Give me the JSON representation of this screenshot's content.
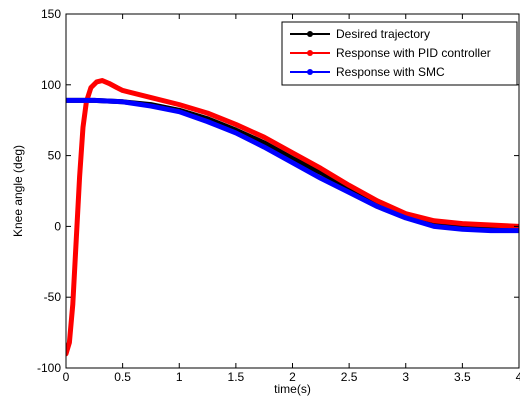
{
  "chart_data": {
    "type": "line",
    "xlabel": "time(s)",
    "ylabel": "Knee angle (deg)",
    "xlim": [
      0,
      4
    ],
    "ylim": [
      -100,
      150
    ],
    "xticks": [
      0,
      0.5,
      1,
      1.5,
      2,
      2.5,
      3,
      3.5,
      4
    ],
    "xtick_labels": [
      "0",
      "0.5",
      "1",
      "1.5",
      "2",
      "2.5",
      "3",
      "3.5",
      "4"
    ],
    "yticks": [
      -100,
      -50,
      0,
      50,
      100,
      150
    ],
    "ytick_labels": [
      "-100",
      "-50",
      "0",
      "50",
      "100",
      "150"
    ],
    "grid": false,
    "legend_position": "top-right",
    "series": [
      {
        "name": "Desired trajectory",
        "color": "#000000",
        "x": [
          0,
          0.25,
          0.5,
          0.75,
          1.0,
          1.25,
          1.5,
          1.75,
          2.0,
          2.25,
          2.5,
          2.75,
          3.0,
          3.25,
          3.5,
          3.75,
          4.0
        ],
        "y": [
          89,
          89,
          88,
          86,
          82,
          76,
          68,
          59,
          48,
          38,
          27,
          17,
          8,
          3,
          1,
          0,
          -1
        ]
      },
      {
        "name": "Response with PID controller",
        "color": "#ff0000",
        "x": [
          0,
          0.03,
          0.06,
          0.09,
          0.12,
          0.15,
          0.18,
          0.22,
          0.27,
          0.32,
          0.38,
          0.45,
          0.5,
          0.75,
          1.0,
          1.25,
          1.5,
          1.75,
          2.0,
          2.25,
          2.5,
          2.75,
          3.0,
          3.25,
          3.5,
          3.75,
          4.0
        ],
        "y": [
          -90,
          -82,
          -55,
          -10,
          35,
          70,
          88,
          98,
          102,
          103,
          101,
          98,
          96,
          91,
          86,
          80,
          72,
          63,
          52,
          41,
          29,
          18,
          9,
          4,
          2,
          1,
          0
        ]
      },
      {
        "name": "Response with SMC",
        "color": "#0000ff",
        "x": [
          0,
          0.25,
          0.5,
          0.75,
          1.0,
          1.25,
          1.5,
          1.75,
          2.0,
          2.25,
          2.5,
          2.75,
          3.0,
          3.25,
          3.5,
          3.75,
          4.0
        ],
        "y": [
          89,
          89,
          88,
          85,
          81,
          74,
          66,
          56,
          45,
          34,
          24,
          14,
          6,
          0,
          -2,
          -3,
          -3
        ]
      }
    ]
  }
}
